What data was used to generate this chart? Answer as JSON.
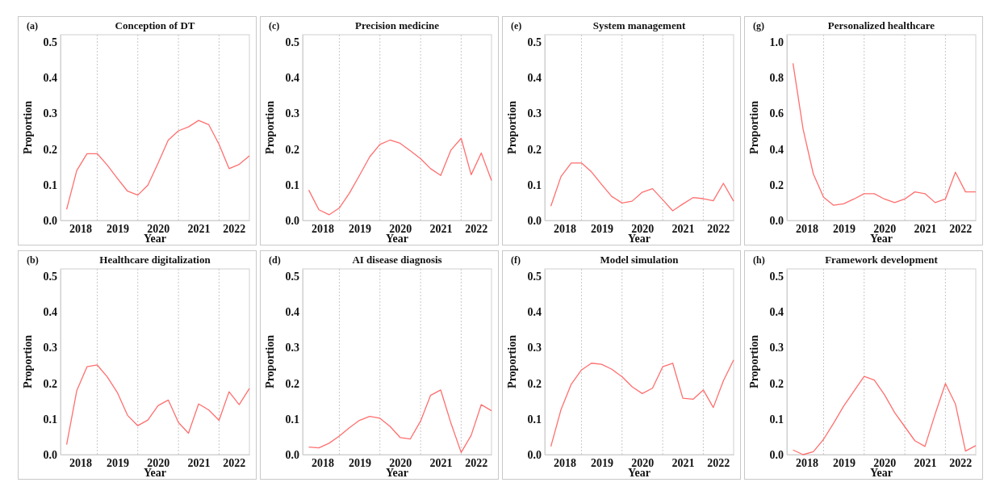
{
  "chart_data": [
    {
      "type": "line",
      "title": "Conception of DT",
      "annotations": [
        "(a)"
      ],
      "xlabel": "Year",
      "ylabel": "Proportion",
      "x": [
        "2018-04-01",
        "2018-07-01",
        "2018-10-01",
        "2019-01-01",
        "2019-04-01",
        "2019-07-01",
        "2019-10-01",
        "2020-01-01",
        "2020-04-01",
        "2020-07-01",
        "2020-10-01",
        "2021-01-01",
        "2021-04-01",
        "2021-07-01",
        "2021-10-01",
        "2022-01-01",
        "2022-04-01",
        "2022-07-01",
        "2022-10-01"
      ],
      "xlim": [
        "2018-02-05",
        "2022-10-01"
      ],
      "xticks": [
        {
          "value": "2018-08-01",
          "label": "2018"
        },
        {
          "value": "2019-07-01",
          "label": "2019"
        },
        {
          "value": "2020-07-01",
          "label": "2020"
        },
        {
          "value": "2021-07-01",
          "label": "2021"
        },
        {
          "value": "2022-05-15",
          "label": "2022"
        }
      ],
      "ylim": [
        0,
        0.52
      ],
      "yticks": [
        {
          "value": 0,
          "label": "0.0"
        },
        {
          "value": 0.1,
          "label": "0.1"
        },
        {
          "value": 0.2,
          "label": "0.2"
        },
        {
          "value": 0.3,
          "label": "0.3"
        },
        {
          "value": 0.4,
          "label": "0.4"
        },
        {
          "value": 0.5,
          "label": "0.5"
        }
      ],
      "ref_lines": [
        {
          "axis": "x",
          "value": "2019-01-01",
          "label": null,
          "color": "#c8c8c8",
          "line_style": "dotted"
        },
        {
          "axis": "x",
          "value": "2020-01-01",
          "label": null,
          "color": "#c8c8c8",
          "line_style": "dotted"
        },
        {
          "axis": "x",
          "value": "2021-01-01",
          "label": null,
          "color": "#c8c8c8",
          "line_style": "dotted"
        },
        {
          "axis": "x",
          "value": "2022-01-01",
          "label": null,
          "color": "#c8c8c8",
          "line_style": "dotted"
        }
      ],
      "grid": false,
      "color": "#ff6f6f",
      "values": [
        0.031,
        0.14,
        0.187,
        0.187,
        0.155,
        0.118,
        0.082,
        0.071,
        0.099,
        0.16,
        0.225,
        0.251,
        0.262,
        0.28,
        0.268,
        0.213,
        0.145,
        0.157,
        0.181
      ]
    },
    {
      "type": "line",
      "title": "Precision medicine",
      "annotations": [
        "(c)"
      ],
      "xlabel": "Year",
      "ylabel": "Proportion",
      "x": [
        "2018-04-01",
        "2018-07-01",
        "2018-10-01",
        "2019-01-01",
        "2019-04-01",
        "2019-07-01",
        "2019-10-01",
        "2020-01-01",
        "2020-04-01",
        "2020-07-01",
        "2020-10-01",
        "2021-01-01",
        "2021-04-01",
        "2021-07-01",
        "2021-10-01",
        "2022-01-01",
        "2022-04-01",
        "2022-07-01",
        "2022-10-01"
      ],
      "xlim": [
        "2018-02-05",
        "2022-10-01"
      ],
      "xticks": [
        {
          "value": "2018-08-01",
          "label": "2018"
        },
        {
          "value": "2019-07-01",
          "label": "2019"
        },
        {
          "value": "2020-07-01",
          "label": "2020"
        },
        {
          "value": "2021-07-01",
          "label": "2021"
        },
        {
          "value": "2022-05-15",
          "label": "2022"
        }
      ],
      "ylim": [
        0,
        0.52
      ],
      "yticks": [
        {
          "value": 0,
          "label": "0.0"
        },
        {
          "value": 0.1,
          "label": "0.1"
        },
        {
          "value": 0.2,
          "label": "0.2"
        },
        {
          "value": 0.3,
          "label": "0.3"
        },
        {
          "value": 0.4,
          "label": "0.4"
        },
        {
          "value": 0.5,
          "label": "0.5"
        }
      ],
      "ref_lines": [
        {
          "axis": "x",
          "value": "2019-01-01",
          "label": null,
          "color": "#c8c8c8",
          "line_style": "dotted"
        },
        {
          "axis": "x",
          "value": "2020-01-01",
          "label": null,
          "color": "#c8c8c8",
          "line_style": "dotted"
        },
        {
          "axis": "x",
          "value": "2021-01-01",
          "label": null,
          "color": "#c8c8c8",
          "line_style": "dotted"
        },
        {
          "axis": "x",
          "value": "2022-01-01",
          "label": null,
          "color": "#c8c8c8",
          "line_style": "dotted"
        }
      ],
      "grid": false,
      "color": "#ff6f6f",
      "values": [
        0.085,
        0.03,
        0.016,
        0.035,
        0.076,
        0.126,
        0.178,
        0.213,
        0.225,
        0.216,
        0.195,
        0.173,
        0.145,
        0.126,
        0.197,
        0.23,
        0.128,
        0.189,
        0.112
      ]
    },
    {
      "type": "line",
      "title": "System management",
      "annotations": [
        "(e)"
      ],
      "xlabel": "Year",
      "ylabel": "Proportion",
      "x": [
        "2018-04-01",
        "2018-07-01",
        "2018-10-01",
        "2019-01-01",
        "2019-04-01",
        "2019-07-01",
        "2019-10-01",
        "2020-01-01",
        "2020-04-01",
        "2020-07-01",
        "2020-10-01",
        "2021-01-01",
        "2021-04-01",
        "2021-07-01",
        "2021-10-01",
        "2022-01-01",
        "2022-04-01",
        "2022-07-01",
        "2022-10-01"
      ],
      "xlim": [
        "2018-02-05",
        "2022-10-01"
      ],
      "xticks": [
        {
          "value": "2018-08-01",
          "label": "2018"
        },
        {
          "value": "2019-07-01",
          "label": "2019"
        },
        {
          "value": "2020-07-01",
          "label": "2020"
        },
        {
          "value": "2021-07-01",
          "label": "2021"
        },
        {
          "value": "2022-05-15",
          "label": "2022"
        }
      ],
      "ylim": [
        0,
        0.52
      ],
      "yticks": [
        {
          "value": 0,
          "label": "0.0"
        },
        {
          "value": 0.1,
          "label": "0.1"
        },
        {
          "value": 0.2,
          "label": "0.2"
        },
        {
          "value": 0.3,
          "label": "0.3"
        },
        {
          "value": 0.4,
          "label": "0.4"
        },
        {
          "value": 0.5,
          "label": "0.5"
        }
      ],
      "ref_lines": [
        {
          "axis": "x",
          "value": "2019-01-01",
          "label": null,
          "color": "#c8c8c8",
          "line_style": "dotted"
        },
        {
          "axis": "x",
          "value": "2020-01-01",
          "label": null,
          "color": "#c8c8c8",
          "line_style": "dotted"
        },
        {
          "axis": "x",
          "value": "2021-01-01",
          "label": null,
          "color": "#c8c8c8",
          "line_style": "dotted"
        },
        {
          "axis": "x",
          "value": "2022-01-01",
          "label": null,
          "color": "#c8c8c8",
          "line_style": "dotted"
        }
      ],
      "grid": false,
      "color": "#ff6f6f",
      "values": [
        0.04,
        0.123,
        0.161,
        0.161,
        0.136,
        0.101,
        0.067,
        0.049,
        0.054,
        0.079,
        0.089,
        0.058,
        0.027,
        0.046,
        0.064,
        0.061,
        0.055,
        0.104,
        0.054
      ]
    },
    {
      "type": "line",
      "title": "Personalized healthcare",
      "annotations": [
        "(g)"
      ],
      "xlabel": "Year",
      "ylabel": "Proportion",
      "x": [
        "2018-04-01",
        "2018-07-01",
        "2018-10-01",
        "2019-01-01",
        "2019-04-01",
        "2019-07-01",
        "2019-10-01",
        "2020-01-01",
        "2020-04-01",
        "2020-07-01",
        "2020-10-01",
        "2021-01-01",
        "2021-04-01",
        "2021-07-01",
        "2021-10-01",
        "2022-01-01",
        "2022-04-01",
        "2022-07-01",
        "2022-10-01"
      ],
      "xlim": [
        "2018-02-05",
        "2022-10-01"
      ],
      "xticks": [
        {
          "value": "2018-08-01",
          "label": "2018"
        },
        {
          "value": "2019-07-01",
          "label": "2019"
        },
        {
          "value": "2020-07-01",
          "label": "2020"
        },
        {
          "value": "2021-07-01",
          "label": "2021"
        },
        {
          "value": "2022-05-15",
          "label": "2022"
        }
      ],
      "ylim": [
        0,
        1.04
      ],
      "yticks": [
        {
          "value": 0,
          "label": "0.0"
        },
        {
          "value": 0.2,
          "label": "0.2"
        },
        {
          "value": 0.4,
          "label": "0.4"
        },
        {
          "value": 0.6,
          "label": "0.6"
        },
        {
          "value": 0.8,
          "label": "0.8"
        },
        {
          "value": 1,
          "label": "1.0"
        }
      ],
      "ref_lines": [
        {
          "axis": "x",
          "value": "2019-01-01",
          "label": null,
          "color": "#c8c8c8",
          "line_style": "dotted"
        },
        {
          "axis": "x",
          "value": "2020-01-01",
          "label": null,
          "color": "#c8c8c8",
          "line_style": "dotted"
        },
        {
          "axis": "x",
          "value": "2021-01-01",
          "label": null,
          "color": "#c8c8c8",
          "line_style": "dotted"
        },
        {
          "axis": "x",
          "value": "2022-01-01",
          "label": null,
          "color": "#c8c8c8",
          "line_style": "dotted"
        }
      ],
      "grid": false,
      "color": "#ff6f6f",
      "values": [
        0.88,
        0.51,
        0.26,
        0.13,
        0.085,
        0.093,
        0.12,
        0.15,
        0.15,
        0.12,
        0.1,
        0.12,
        0.16,
        0.15,
        0.1,
        0.12,
        0.27,
        0.16,
        0.16
      ]
    },
    {
      "type": "line",
      "title": "Healthcare digitalization",
      "annotations": [
        "(b)"
      ],
      "xlabel": "Year",
      "ylabel": "Proportion",
      "x": [
        "2018-04-01",
        "2018-07-01",
        "2018-10-01",
        "2019-01-01",
        "2019-04-01",
        "2019-07-01",
        "2019-10-01",
        "2020-01-01",
        "2020-04-01",
        "2020-07-01",
        "2020-10-01",
        "2021-01-01",
        "2021-04-01",
        "2021-07-01",
        "2021-10-01",
        "2022-01-01",
        "2022-04-01",
        "2022-07-01",
        "2022-10-01"
      ],
      "xlim": [
        "2018-02-05",
        "2022-10-01"
      ],
      "xticks": [
        {
          "value": "2018-08-01",
          "label": "2018"
        },
        {
          "value": "2019-07-01",
          "label": "2019"
        },
        {
          "value": "2020-07-01",
          "label": "2020"
        },
        {
          "value": "2021-07-01",
          "label": "2021"
        },
        {
          "value": "2022-05-15",
          "label": "2022"
        }
      ],
      "ylim": [
        0,
        0.52
      ],
      "yticks": [
        {
          "value": 0,
          "label": "0.0"
        },
        {
          "value": 0.1,
          "label": "0.1"
        },
        {
          "value": 0.2,
          "label": "0.2"
        },
        {
          "value": 0.3,
          "label": "0.3"
        },
        {
          "value": 0.4,
          "label": "0.4"
        },
        {
          "value": 0.5,
          "label": "0.5"
        }
      ],
      "ref_lines": [
        {
          "axis": "x",
          "value": "2019-01-01",
          "label": null,
          "color": "#c8c8c8",
          "line_style": "dotted"
        },
        {
          "axis": "x",
          "value": "2020-01-01",
          "label": null,
          "color": "#c8c8c8",
          "line_style": "dotted"
        },
        {
          "axis": "x",
          "value": "2021-01-01",
          "label": null,
          "color": "#c8c8c8",
          "line_style": "dotted"
        },
        {
          "axis": "x",
          "value": "2022-01-01",
          "label": null,
          "color": "#c8c8c8",
          "line_style": "dotted"
        }
      ],
      "grid": false,
      "color": "#ff6f6f",
      "values": [
        0.028,
        0.179,
        0.246,
        0.251,
        0.218,
        0.174,
        0.11,
        0.081,
        0.097,
        0.137,
        0.153,
        0.09,
        0.06,
        0.142,
        0.125,
        0.096,
        0.176,
        0.14,
        0.185
      ]
    },
    {
      "type": "line",
      "title": "AI disease diagnosis",
      "annotations": [
        "(d)"
      ],
      "xlabel": "Year",
      "ylabel": "Proportion",
      "x": [
        "2018-04-01",
        "2018-07-01",
        "2018-10-01",
        "2019-01-01",
        "2019-04-01",
        "2019-07-01",
        "2019-10-01",
        "2020-01-01",
        "2020-04-01",
        "2020-07-01",
        "2020-10-01",
        "2021-01-01",
        "2021-04-01",
        "2021-07-01",
        "2021-10-01",
        "2022-01-01",
        "2022-04-01",
        "2022-07-01",
        "2022-10-01"
      ],
      "xlim": [
        "2018-02-05",
        "2022-10-01"
      ],
      "xticks": [
        {
          "value": "2018-08-01",
          "label": "2018"
        },
        {
          "value": "2019-07-01",
          "label": "2019"
        },
        {
          "value": "2020-07-01",
          "label": "2020"
        },
        {
          "value": "2021-07-01",
          "label": "2021"
        },
        {
          "value": "2022-05-15",
          "label": "2022"
        }
      ],
      "ylim": [
        0,
        0.52
      ],
      "yticks": [
        {
          "value": 0,
          "label": "0.0"
        },
        {
          "value": 0.1,
          "label": "0.1"
        },
        {
          "value": 0.2,
          "label": "0.2"
        },
        {
          "value": 0.3,
          "label": "0.3"
        },
        {
          "value": 0.4,
          "label": "0.4"
        },
        {
          "value": 0.5,
          "label": "0.5"
        }
      ],
      "ref_lines": [
        {
          "axis": "x",
          "value": "2019-01-01",
          "label": null,
          "color": "#c8c8c8",
          "line_style": "dotted"
        },
        {
          "axis": "x",
          "value": "2020-01-01",
          "label": null,
          "color": "#c8c8c8",
          "line_style": "dotted"
        },
        {
          "axis": "x",
          "value": "2021-01-01",
          "label": null,
          "color": "#c8c8c8",
          "line_style": "dotted"
        },
        {
          "axis": "x",
          "value": "2022-01-01",
          "label": null,
          "color": "#c8c8c8",
          "line_style": "dotted"
        }
      ],
      "grid": false,
      "color": "#ff6f6f",
      "values": [
        0.021,
        0.019,
        0.032,
        0.052,
        0.075,
        0.096,
        0.107,
        0.102,
        0.079,
        0.048,
        0.044,
        0.094,
        0.166,
        0.181,
        0.088,
        0.006,
        0.054,
        0.14,
        0.123
      ]
    },
    {
      "type": "line",
      "title": "Model simulation",
      "annotations": [
        "(f)"
      ],
      "xlabel": "Year",
      "ylabel": "Proportion",
      "x": [
        "2018-04-01",
        "2018-07-01",
        "2018-10-01",
        "2019-01-01",
        "2019-04-01",
        "2019-07-01",
        "2019-10-01",
        "2020-01-01",
        "2020-04-01",
        "2020-07-01",
        "2020-10-01",
        "2021-01-01",
        "2021-04-01",
        "2021-07-01",
        "2021-10-01",
        "2022-01-01",
        "2022-04-01",
        "2022-07-01",
        "2022-10-01"
      ],
      "xlim": [
        "2018-02-05",
        "2022-10-01"
      ],
      "xticks": [
        {
          "value": "2018-08-01",
          "label": "2018"
        },
        {
          "value": "2019-07-01",
          "label": "2019"
        },
        {
          "value": "2020-07-01",
          "label": "2020"
        },
        {
          "value": "2021-07-01",
          "label": "2021"
        },
        {
          "value": "2022-05-15",
          "label": "2022"
        }
      ],
      "ylim": [
        0,
        0.52
      ],
      "yticks": [
        {
          "value": 0,
          "label": "0.0"
        },
        {
          "value": 0.1,
          "label": "0.1"
        },
        {
          "value": 0.2,
          "label": "0.2"
        },
        {
          "value": 0.3,
          "label": "0.3"
        },
        {
          "value": 0.4,
          "label": "0.4"
        },
        {
          "value": 0.5,
          "label": "0.5"
        }
      ],
      "ref_lines": [
        {
          "axis": "x",
          "value": "2019-01-01",
          "label": null,
          "color": "#c8c8c8",
          "line_style": "dotted"
        },
        {
          "axis": "x",
          "value": "2020-01-01",
          "label": null,
          "color": "#c8c8c8",
          "line_style": "dotted"
        },
        {
          "axis": "x",
          "value": "2021-01-01",
          "label": null,
          "color": "#c8c8c8",
          "line_style": "dotted"
        },
        {
          "axis": "x",
          "value": "2022-01-01",
          "label": null,
          "color": "#c8c8c8",
          "line_style": "dotted"
        }
      ],
      "grid": false,
      "color": "#ff6f6f",
      "values": [
        0.023,
        0.126,
        0.197,
        0.237,
        0.256,
        0.253,
        0.239,
        0.218,
        0.19,
        0.171,
        0.186,
        0.246,
        0.256,
        0.158,
        0.155,
        0.181,
        0.132,
        0.207,
        0.265
      ]
    },
    {
      "type": "line",
      "title": "Framework development",
      "annotations": [
        "(h)"
      ],
      "xlabel": "Year",
      "ylabel": "Proportion",
      "x": [
        "2018-04-01",
        "2018-07-01",
        "2018-10-01",
        "2019-01-01",
        "2019-04-01",
        "2019-07-01",
        "2019-10-01",
        "2020-01-01",
        "2020-04-01",
        "2020-07-01",
        "2020-10-01",
        "2021-01-01",
        "2021-04-01",
        "2021-07-01",
        "2021-10-01",
        "2022-01-01",
        "2022-04-01",
        "2022-07-01",
        "2022-10-01"
      ],
      "xlim": [
        "2018-02-05",
        "2022-10-01"
      ],
      "xticks": [
        {
          "value": "2018-08-01",
          "label": "2018"
        },
        {
          "value": "2019-07-01",
          "label": "2019"
        },
        {
          "value": "2020-07-01",
          "label": "2020"
        },
        {
          "value": "2021-07-01",
          "label": "2021"
        },
        {
          "value": "2022-05-15",
          "label": "2022"
        }
      ],
      "ylim": [
        0,
        0.52
      ],
      "yticks": [
        {
          "value": 0,
          "label": "0.0"
        },
        {
          "value": 0.1,
          "label": "0.1"
        },
        {
          "value": 0.2,
          "label": "0.2"
        },
        {
          "value": 0.3,
          "label": "0.3"
        },
        {
          "value": 0.4,
          "label": "0.4"
        },
        {
          "value": 0.5,
          "label": "0.5"
        }
      ],
      "ref_lines": [
        {
          "axis": "x",
          "value": "2019-01-01",
          "label": null,
          "color": "#c8c8c8",
          "line_style": "dotted"
        },
        {
          "axis": "x",
          "value": "2020-01-01",
          "label": null,
          "color": "#c8c8c8",
          "line_style": "dotted"
        },
        {
          "axis": "x",
          "value": "2021-01-01",
          "label": null,
          "color": "#c8c8c8",
          "line_style": "dotted"
        },
        {
          "axis": "x",
          "value": "2022-01-01",
          "label": null,
          "color": "#c8c8c8",
          "line_style": "dotted"
        }
      ],
      "grid": false,
      "color": "#ff6f6f",
      "values": [
        0.013,
        0,
        0.008,
        0.043,
        0.088,
        0.136,
        0.178,
        0.219,
        0.209,
        0.168,
        0.118,
        0.078,
        0.039,
        0.023,
        0.114,
        0.199,
        0.142,
        0.01,
        0.025
      ]
    }
  ]
}
